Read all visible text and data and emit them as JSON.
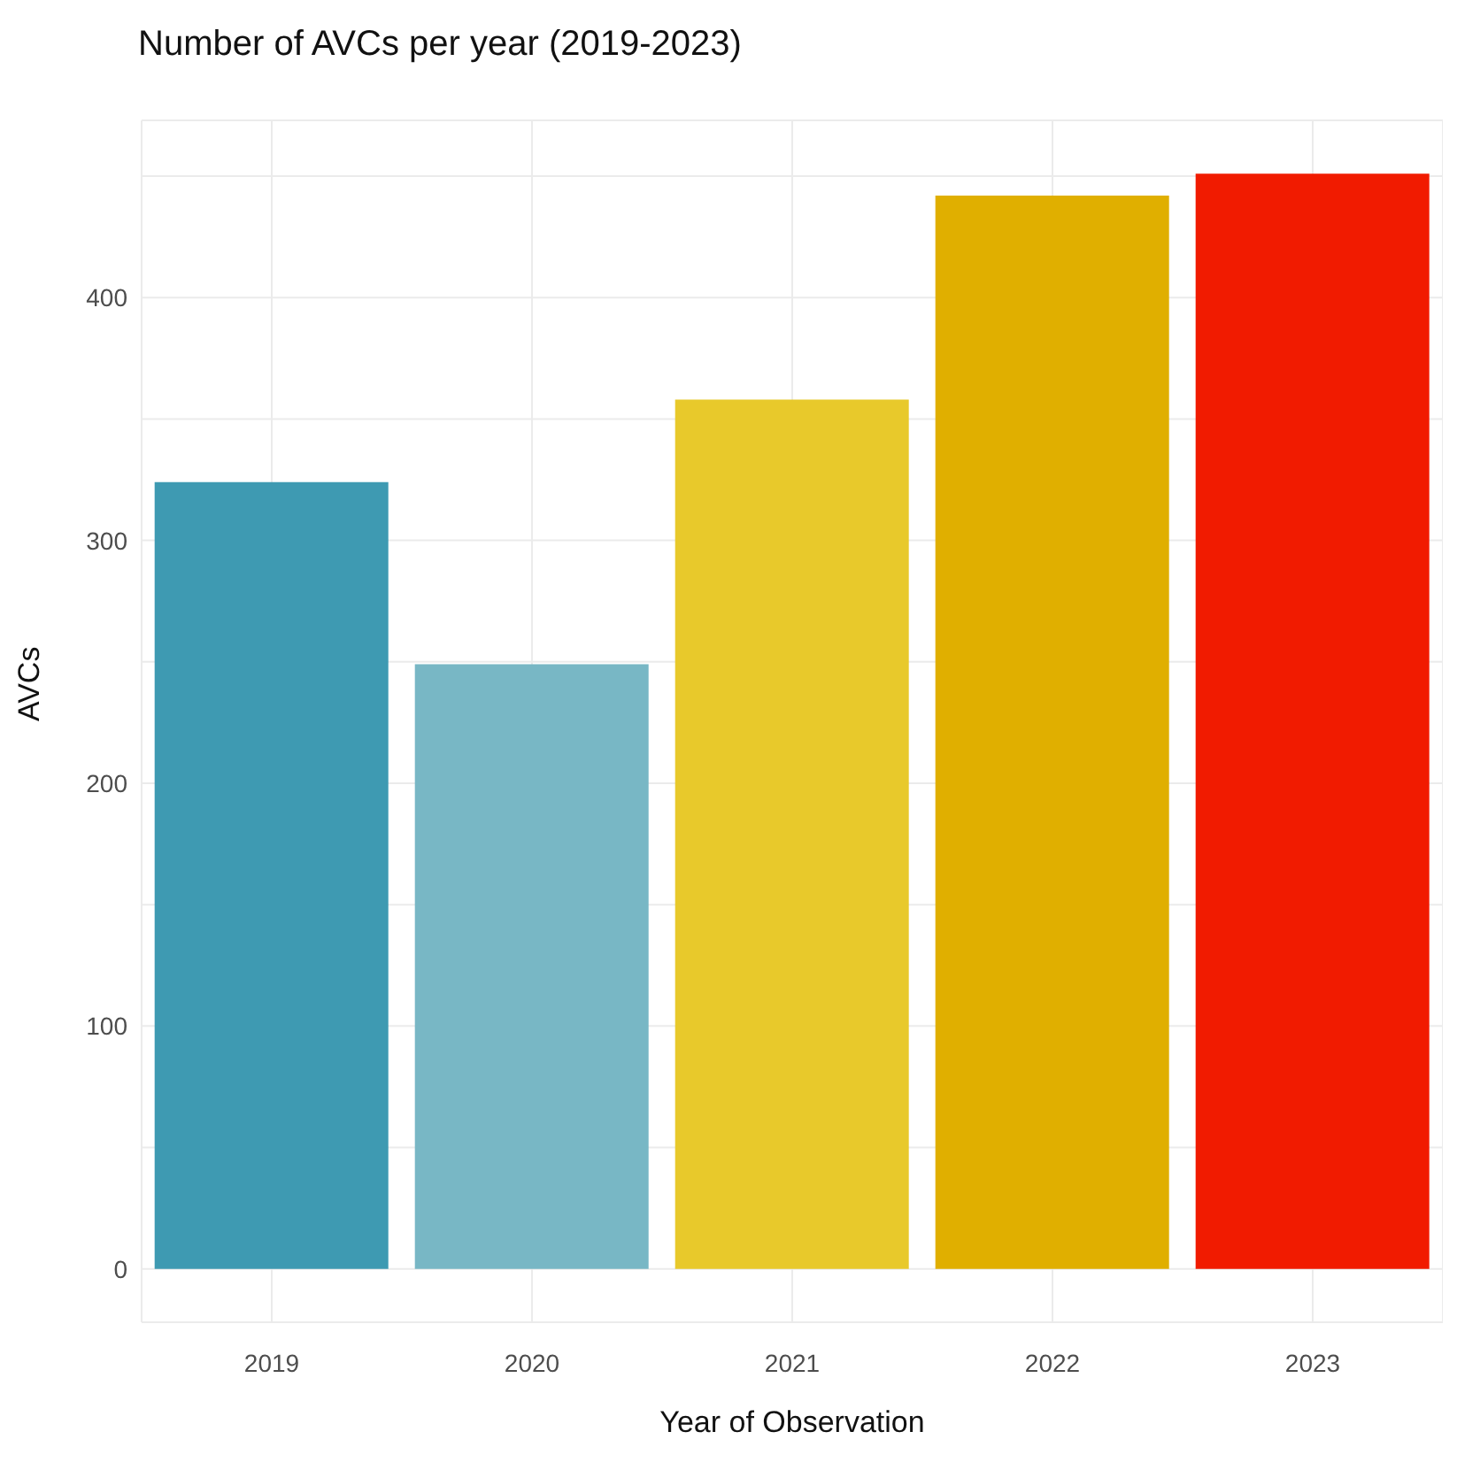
{
  "chart_data": {
    "type": "bar",
    "title": "Number of AVCs per year (2019-2023)",
    "xlabel": "Year of Observation",
    "ylabel": "AVCs",
    "categories": [
      "2019",
      "2020",
      "2021",
      "2022",
      "2023"
    ],
    "values": [
      324,
      249,
      358,
      442,
      451
    ],
    "colors": [
      "#3e9ab2",
      "#78b7c5",
      "#e8c92b",
      "#e0af00",
      "#f11b00"
    ],
    "ylim": [
      -22,
      473
    ],
    "yticks": [
      0,
      {
        "value": 50,
        "label": null
      },
      100,
      {
        "value": 150,
        "label": null
      },
      200,
      {
        "value": 250,
        "label": null
      },
      300,
      {
        "value": 350,
        "label": null
      },
      400,
      {
        "value": 450,
        "label": null
      }
    ],
    "grid": true
  }
}
